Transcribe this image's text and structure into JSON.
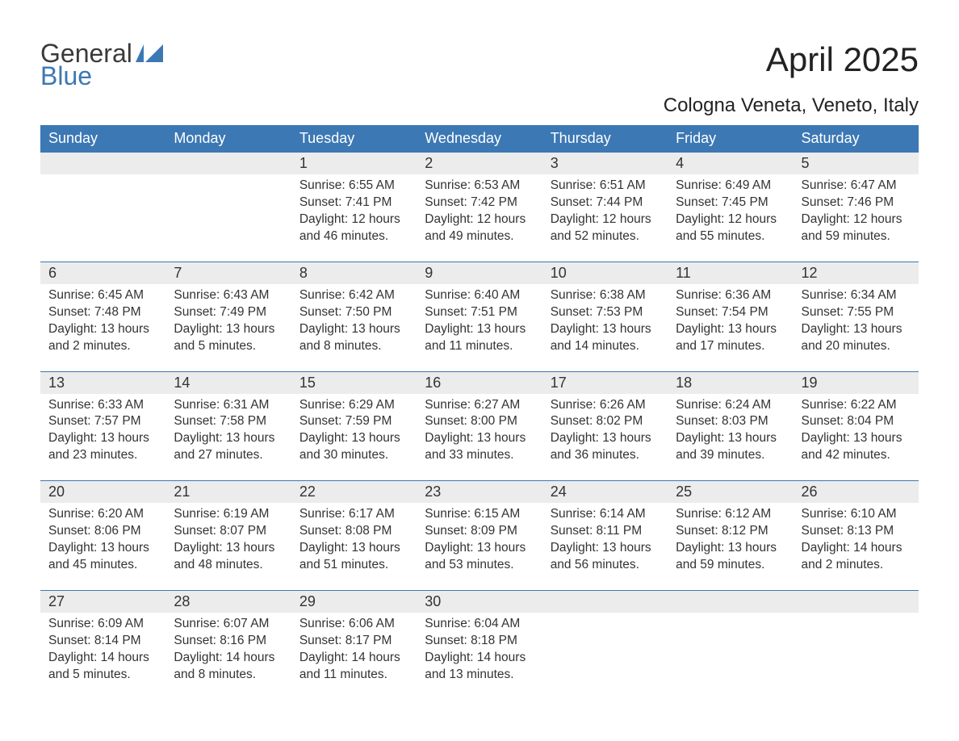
{
  "brand": {
    "line1": "General",
    "line2": "Blue",
    "accent_color": "#3c78b4"
  },
  "title": "April 2025",
  "location": "Cologna Veneta, Veneto, Italy",
  "colors": {
    "header_bg": "#3c78b4",
    "header_text": "#ffffff",
    "daynum_bg": "#ececec",
    "row_border": "#3c78b4",
    "body_text": "#333333",
    "page_bg": "#ffffff"
  },
  "font": {
    "family": "Arial",
    "title_size": 42,
    "location_size": 24,
    "header_size": 18,
    "daynum_size": 18,
    "cell_size": 15.5
  },
  "days_of_week": [
    "Sunday",
    "Monday",
    "Tuesday",
    "Wednesday",
    "Thursday",
    "Friday",
    "Saturday"
  ],
  "weeks": [
    [
      null,
      null,
      {
        "n": "1",
        "sunrise": "Sunrise: 6:55 AM",
        "sunset": "Sunset: 7:41 PM",
        "daylight": "Daylight: 12 hours and 46 minutes."
      },
      {
        "n": "2",
        "sunrise": "Sunrise: 6:53 AM",
        "sunset": "Sunset: 7:42 PM",
        "daylight": "Daylight: 12 hours and 49 minutes."
      },
      {
        "n": "3",
        "sunrise": "Sunrise: 6:51 AM",
        "sunset": "Sunset: 7:44 PM",
        "daylight": "Daylight: 12 hours and 52 minutes."
      },
      {
        "n": "4",
        "sunrise": "Sunrise: 6:49 AM",
        "sunset": "Sunset: 7:45 PM",
        "daylight": "Daylight: 12 hours and 55 minutes."
      },
      {
        "n": "5",
        "sunrise": "Sunrise: 6:47 AM",
        "sunset": "Sunset: 7:46 PM",
        "daylight": "Daylight: 12 hours and 59 minutes."
      }
    ],
    [
      {
        "n": "6",
        "sunrise": "Sunrise: 6:45 AM",
        "sunset": "Sunset: 7:48 PM",
        "daylight": "Daylight: 13 hours and 2 minutes."
      },
      {
        "n": "7",
        "sunrise": "Sunrise: 6:43 AM",
        "sunset": "Sunset: 7:49 PM",
        "daylight": "Daylight: 13 hours and 5 minutes."
      },
      {
        "n": "8",
        "sunrise": "Sunrise: 6:42 AM",
        "sunset": "Sunset: 7:50 PM",
        "daylight": "Daylight: 13 hours and 8 minutes."
      },
      {
        "n": "9",
        "sunrise": "Sunrise: 6:40 AM",
        "sunset": "Sunset: 7:51 PM",
        "daylight": "Daylight: 13 hours and 11 minutes."
      },
      {
        "n": "10",
        "sunrise": "Sunrise: 6:38 AM",
        "sunset": "Sunset: 7:53 PM",
        "daylight": "Daylight: 13 hours and 14 minutes."
      },
      {
        "n": "11",
        "sunrise": "Sunrise: 6:36 AM",
        "sunset": "Sunset: 7:54 PM",
        "daylight": "Daylight: 13 hours and 17 minutes."
      },
      {
        "n": "12",
        "sunrise": "Sunrise: 6:34 AM",
        "sunset": "Sunset: 7:55 PM",
        "daylight": "Daylight: 13 hours and 20 minutes."
      }
    ],
    [
      {
        "n": "13",
        "sunrise": "Sunrise: 6:33 AM",
        "sunset": "Sunset: 7:57 PM",
        "daylight": "Daylight: 13 hours and 23 minutes."
      },
      {
        "n": "14",
        "sunrise": "Sunrise: 6:31 AM",
        "sunset": "Sunset: 7:58 PM",
        "daylight": "Daylight: 13 hours and 27 minutes."
      },
      {
        "n": "15",
        "sunrise": "Sunrise: 6:29 AM",
        "sunset": "Sunset: 7:59 PM",
        "daylight": "Daylight: 13 hours and 30 minutes."
      },
      {
        "n": "16",
        "sunrise": "Sunrise: 6:27 AM",
        "sunset": "Sunset: 8:00 PM",
        "daylight": "Daylight: 13 hours and 33 minutes."
      },
      {
        "n": "17",
        "sunrise": "Sunrise: 6:26 AM",
        "sunset": "Sunset: 8:02 PM",
        "daylight": "Daylight: 13 hours and 36 minutes."
      },
      {
        "n": "18",
        "sunrise": "Sunrise: 6:24 AM",
        "sunset": "Sunset: 8:03 PM",
        "daylight": "Daylight: 13 hours and 39 minutes."
      },
      {
        "n": "19",
        "sunrise": "Sunrise: 6:22 AM",
        "sunset": "Sunset: 8:04 PM",
        "daylight": "Daylight: 13 hours and 42 minutes."
      }
    ],
    [
      {
        "n": "20",
        "sunrise": "Sunrise: 6:20 AM",
        "sunset": "Sunset: 8:06 PM",
        "daylight": "Daylight: 13 hours and 45 minutes."
      },
      {
        "n": "21",
        "sunrise": "Sunrise: 6:19 AM",
        "sunset": "Sunset: 8:07 PM",
        "daylight": "Daylight: 13 hours and 48 minutes."
      },
      {
        "n": "22",
        "sunrise": "Sunrise: 6:17 AM",
        "sunset": "Sunset: 8:08 PM",
        "daylight": "Daylight: 13 hours and 51 minutes."
      },
      {
        "n": "23",
        "sunrise": "Sunrise: 6:15 AM",
        "sunset": "Sunset: 8:09 PM",
        "daylight": "Daylight: 13 hours and 53 minutes."
      },
      {
        "n": "24",
        "sunrise": "Sunrise: 6:14 AM",
        "sunset": "Sunset: 8:11 PM",
        "daylight": "Daylight: 13 hours and 56 minutes."
      },
      {
        "n": "25",
        "sunrise": "Sunrise: 6:12 AM",
        "sunset": "Sunset: 8:12 PM",
        "daylight": "Daylight: 13 hours and 59 minutes."
      },
      {
        "n": "26",
        "sunrise": "Sunrise: 6:10 AM",
        "sunset": "Sunset: 8:13 PM",
        "daylight": "Daylight: 14 hours and 2 minutes."
      }
    ],
    [
      {
        "n": "27",
        "sunrise": "Sunrise: 6:09 AM",
        "sunset": "Sunset: 8:14 PM",
        "daylight": "Daylight: 14 hours and 5 minutes."
      },
      {
        "n": "28",
        "sunrise": "Sunrise: 6:07 AM",
        "sunset": "Sunset: 8:16 PM",
        "daylight": "Daylight: 14 hours and 8 minutes."
      },
      {
        "n": "29",
        "sunrise": "Sunrise: 6:06 AM",
        "sunset": "Sunset: 8:17 PM",
        "daylight": "Daylight: 14 hours and 11 minutes."
      },
      {
        "n": "30",
        "sunrise": "Sunrise: 6:04 AM",
        "sunset": "Sunset: 8:18 PM",
        "daylight": "Daylight: 14 hours and 13 minutes."
      },
      null,
      null,
      null
    ]
  ]
}
